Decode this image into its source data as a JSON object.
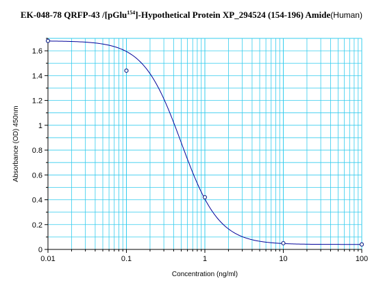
{
  "chart_data": {
    "type": "scatter",
    "title": {
      "prefix": "EK-048-78 QRFP-43 /[pGlu",
      "superscript": "154",
      "middle": "]-Hypothetical Protein XP_294524 (154-196) Amide",
      "suffix": "(Human)"
    },
    "xlabel": "Concentration (ng/ml)",
    "ylabel": "Absorbance (OD) 450nm",
    "x_scale": "log",
    "xlim": [
      0.01,
      100
    ],
    "ylim": [
      0,
      1.7
    ],
    "x_ticks": [
      "0.01",
      "0.1",
      "1",
      "10",
      "100"
    ],
    "y_ticks": [
      "0",
      "0.2",
      "0.4",
      "0.6",
      "0.8",
      "1",
      "1.2",
      "1.4",
      "1.6"
    ],
    "grid": true,
    "legend": "none",
    "series": [
      {
        "points": [
          {
            "x": 0.01,
            "y": 1.68
          },
          {
            "x": 0.1,
            "y": 1.44
          },
          {
            "x": 1,
            "y": 0.42
          },
          {
            "x": 10,
            "y": 0.05
          },
          {
            "x": 100,
            "y": 0.04
          }
        ]
      }
    ],
    "fit_curve": {
      "top": 1.68,
      "bottom": 0.04,
      "ec50": 0.5,
      "hill": 1.8
    },
    "colors": {
      "grid": "#33ccee",
      "curve": "#000099",
      "marker": "#1e2f8e",
      "axis": "#000000"
    }
  }
}
